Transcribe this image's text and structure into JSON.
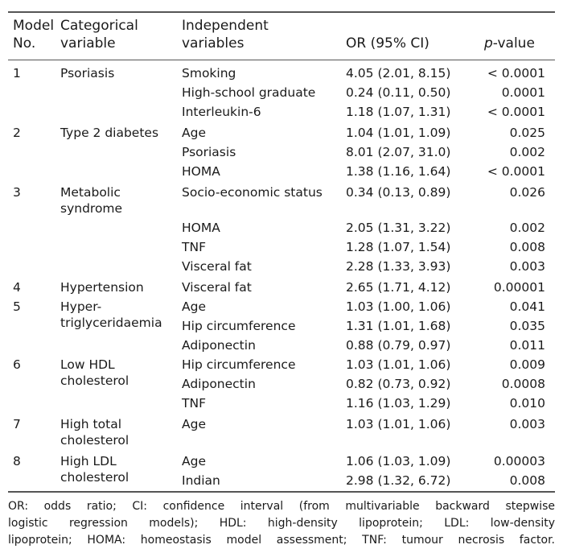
{
  "headers": {
    "model_no": [
      "Model",
      "No."
    ],
    "categorical": [
      "Categorical",
      "variable"
    ],
    "independent": [
      "Independent",
      "variables"
    ],
    "or": "OR (95% CI)",
    "p_italic": "p",
    "p_rest": "-value"
  },
  "rows": [
    {
      "no": "1",
      "cat": [
        "Psoriasis"
      ],
      "ind": "Smoking",
      "or": "4.05 (2.01, 8.15)",
      "p": "< 0.0001"
    },
    {
      "no": "",
      "cat": [],
      "ind": "High-school graduate",
      "or": "0.24 (0.11, 0.50)",
      "p": "0.0001"
    },
    {
      "no": "",
      "cat": [],
      "ind": "Interleukin-6",
      "or": "1.18 (1.07, 1.31)",
      "p": "< 0.0001"
    },
    {
      "no": "2",
      "cat": [
        "Type 2 diabetes"
      ],
      "ind": "Age",
      "or": "1.04 (1.01, 1.09)",
      "p": "0.025"
    },
    {
      "no": "",
      "cat": [],
      "ind": "Psoriasis",
      "or": "8.01 (2.07, 31.0)",
      "p": "0.002"
    },
    {
      "no": "",
      "cat": [],
      "ind": "HOMA",
      "or": "1.38 (1.16, 1.64)",
      "p": "< 0.0001"
    },
    {
      "no": "3",
      "cat": [
        "Metabolic",
        "syndrome"
      ],
      "ind": "Socio-economic status",
      "or": "0.34 (0.13, 0.89)",
      "p": "0.026"
    },
    {
      "no": "",
      "cat": [],
      "ind": "HOMA",
      "or": "2.05 (1.31, 3.22)",
      "p": "0.002"
    },
    {
      "no": "",
      "cat": [],
      "ind": "TNF",
      "or": "1.28 (1.07, 1.54)",
      "p": "0.008"
    },
    {
      "no": "",
      "cat": [],
      "ind": "Visceral fat",
      "or": "2.28 (1.33, 3.93)",
      "p": "0.003"
    },
    {
      "no": "4",
      "cat": [
        "Hypertension"
      ],
      "ind": "Visceral fat",
      "or": "2.65 (1.71, 4.12)",
      "p": "0.00001"
    },
    {
      "no": "5",
      "cat": [
        "Hyper-",
        "triglyceridaemia"
      ],
      "ind": "Age",
      "or": "1.03 (1.00, 1.06)",
      "p": "0.041"
    },
    {
      "no": "",
      "cat": [],
      "ind": "Hip circumference",
      "or": "1.31 (1.01, 1.68)",
      "p": "0.035"
    },
    {
      "no": "",
      "cat": [],
      "ind": "Adiponectin",
      "or": "0.88 (0.79, 0.97)",
      "p": "0.011"
    },
    {
      "no": "6",
      "cat": [
        "Low HDL",
        "cholesterol"
      ],
      "ind": "Hip circumference",
      "or": "1.03 (1.01, 1.06)",
      "p": "0.009"
    },
    {
      "no": "",
      "cat": [],
      "ind": "Adiponectin",
      "or": "0.82 (0.73, 0.92)",
      "p": "0.0008"
    },
    {
      "no": "",
      "cat": [],
      "ind": "TNF",
      "or": "1.16 (1.03, 1.29)",
      "p": "0.010"
    },
    {
      "no": "7",
      "cat": [
        "High total",
        "cholesterol"
      ],
      "ind": "Age",
      "or": "1.03 (1.01, 1.06)",
      "p": "0.003"
    },
    {
      "no": "8",
      "cat": [
        "High LDL",
        "cholesterol"
      ],
      "ind": "Age",
      "or": "1.06 (1.03, 1.09)",
      "p": "0.00003"
    },
    {
      "no": "",
      "cat": [],
      "ind": "Indian",
      "or": "2.98 (1.32, 6.72)",
      "p": "0.008"
    }
  ],
  "footnote": [
    "OR: odds ratio; CI: confidence interval (from multivariable backward stepwise",
    "logistic regression models); HDL: high-density lipoprotein; LDL: low-density",
    "lipoprotein; HOMA: homeostasis model assessment; TNF: tumour necrosis factor."
  ]
}
